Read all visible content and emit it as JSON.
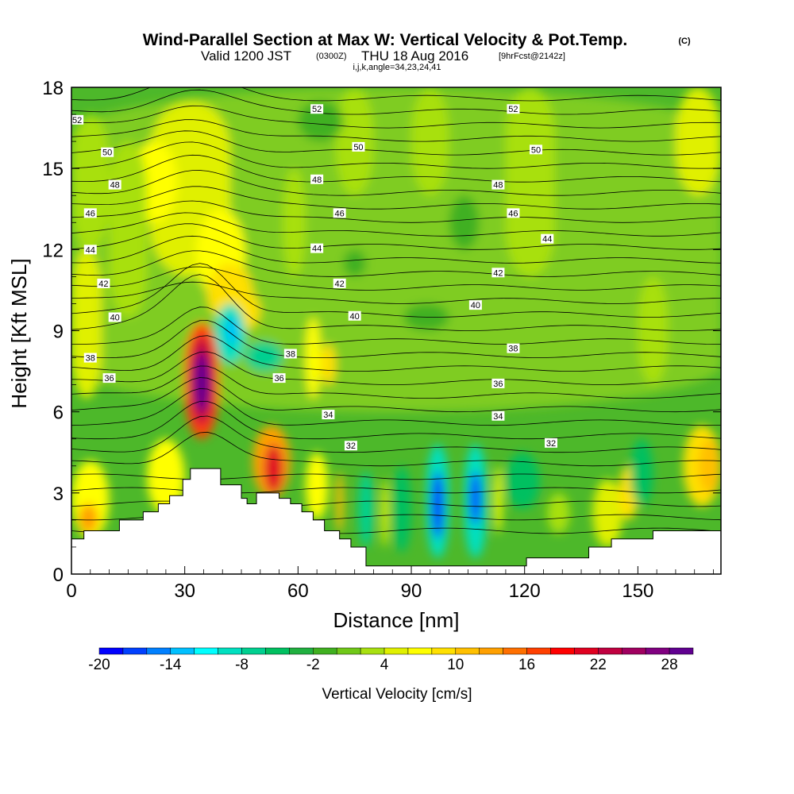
{
  "header": {
    "title": "Wind-Parallel Section at Max W: Vertical Velocity & Pot.Temp.",
    "title_mark": "(C)",
    "valid_prefix": "Valid 1200 JST",
    "valid_utc": "(0300Z)",
    "valid_date": "THU 18 Aug 2016",
    "forecast_tag": "[9hrFcst@2142z]",
    "grid_info": "i,j,k,angle=34,23,24,41"
  },
  "chart_data": {
    "type": "heatmap",
    "title": "Wind-Parallel Section at Max W: Vertical Velocity & Pot.Temp.",
    "xlabel": "Distance [nm]",
    "ylabel": "Height [Kft MSL]",
    "xlim": [
      0,
      172
    ],
    "ylim": [
      0,
      18
    ],
    "x_ticks": [
      "0",
      "30",
      "60",
      "90",
      "120",
      "150"
    ],
    "y_ticks": [
      "0",
      "3",
      "6",
      "9",
      "12",
      "15",
      "18"
    ],
    "colorbar": {
      "label": "Vertical Velocity [cm/s]",
      "tick_labels": [
        "-20",
        "-14",
        "-8",
        "-2",
        "4",
        "10",
        "16",
        "22",
        "28"
      ],
      "levels": [
        -20,
        -18,
        -16,
        -14,
        -12,
        -10,
        -8,
        -6,
        -4,
        -2,
        0,
        2,
        4,
        6,
        8,
        10,
        12,
        14,
        16,
        18,
        20,
        22,
        24,
        26,
        28,
        30
      ],
      "colors": [
        "#0000ff",
        "#0040ff",
        "#0080ff",
        "#00c0ff",
        "#00ffff",
        "#00e0c0",
        "#00d090",
        "#00c060",
        "#20b040",
        "#40b020",
        "#70c818",
        "#a8e010",
        "#e0f000",
        "#ffff00",
        "#ffe000",
        "#ffc000",
        "#ffa000",
        "#ff7000",
        "#ff4000",
        "#ff0000",
        "#e00020",
        "#c00040",
        "#a00060",
        "#800080",
        "#600090"
      ]
    },
    "theta_contours": {
      "levels": [
        32,
        34,
        36,
        38,
        40,
        42,
        44,
        46,
        48,
        50,
        52
      ],
      "labels": [
        {
          "text": "52",
          "x": 1.5,
          "y": 16.8
        },
        {
          "text": "50",
          "x": 9.5,
          "y": 15.6
        },
        {
          "text": "48",
          "x": 11.5,
          "y": 14.4
        },
        {
          "text": "46",
          "x": 5.0,
          "y": 13.35
        },
        {
          "text": "44",
          "x": 5.0,
          "y": 12.0
        },
        {
          "text": "42",
          "x": 8.5,
          "y": 10.75
        },
        {
          "text": "40",
          "x": 11.5,
          "y": 9.5
        },
        {
          "text": "38",
          "x": 5.0,
          "y": 8.0
        },
        {
          "text": "36",
          "x": 10.0,
          "y": 7.25
        },
        {
          "text": "52",
          "x": 65.0,
          "y": 17.2
        },
        {
          "text": "50",
          "x": 76.0,
          "y": 15.8
        },
        {
          "text": "48",
          "x": 65.0,
          "y": 14.6
        },
        {
          "text": "46",
          "x": 71.0,
          "y": 13.35
        },
        {
          "text": "44",
          "x": 65.0,
          "y": 12.05
        },
        {
          "text": "42",
          "x": 71.0,
          "y": 10.75
        },
        {
          "text": "40",
          "x": 75.0,
          "y": 9.55
        },
        {
          "text": "38",
          "x": 58.0,
          "y": 8.15
        },
        {
          "text": "36",
          "x": 55.0,
          "y": 7.25
        },
        {
          "text": "34",
          "x": 68.0,
          "y": 5.9
        },
        {
          "text": "32",
          "x": 74.0,
          "y": 4.75
        },
        {
          "text": "52",
          "x": 117.0,
          "y": 17.2
        },
        {
          "text": "50",
          "x": 123.0,
          "y": 15.7
        },
        {
          "text": "48",
          "x": 113.0,
          "y": 14.4
        },
        {
          "text": "46",
          "x": 117.0,
          "y": 13.35
        },
        {
          "text": "44",
          "x": 126.0,
          "y": 12.4
        },
        {
          "text": "42",
          "x": 113.0,
          "y": 11.15
        },
        {
          "text": "40",
          "x": 107.0,
          "y": 9.95
        },
        {
          "text": "38",
          "x": 117.0,
          "y": 8.35
        },
        {
          "text": "36",
          "x": 113.0,
          "y": 7.05
        },
        {
          "text": "34",
          "x": 113.0,
          "y": 5.85
        },
        {
          "text": "32",
          "x": 127.0,
          "y": 4.85
        }
      ]
    },
    "terrain_kft": [
      [
        0,
        1.3
      ],
      [
        3.3,
        1.6
      ],
      [
        12.7,
        2.0
      ],
      [
        19,
        2.3
      ],
      [
        23,
        2.6
      ],
      [
        26,
        2.9
      ],
      [
        29.5,
        3.5
      ],
      [
        31.5,
        3.9
      ],
      [
        39.5,
        3.3
      ],
      [
        45,
        2.8
      ],
      [
        46.5,
        2.6
      ],
      [
        49,
        3.0
      ],
      [
        55,
        2.8
      ],
      [
        58,
        2.6
      ],
      [
        61,
        2.3
      ],
      [
        64,
        2.0
      ],
      [
        67,
        1.6
      ],
      [
        71,
        1.3
      ],
      [
        74,
        1.0
      ],
      [
        78,
        0.3
      ],
      [
        120,
        0.3
      ],
      [
        120.5,
        0.6
      ],
      [
        137,
        1.0
      ],
      [
        143,
        1.3
      ],
      [
        154,
        1.6
      ],
      [
        172,
        1.6
      ]
    ]
  }
}
